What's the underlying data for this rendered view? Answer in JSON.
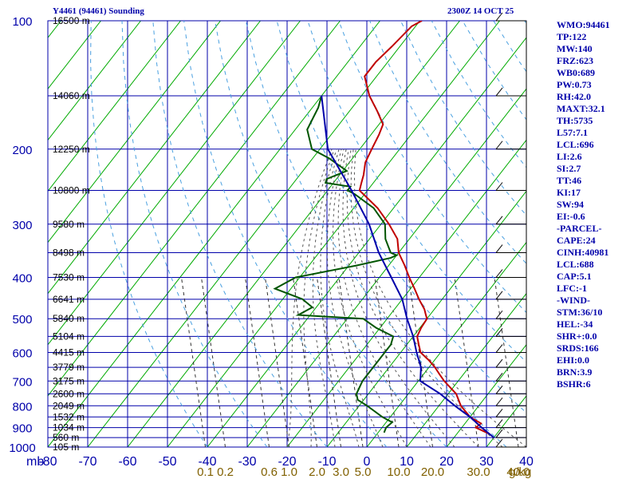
{
  "title": "Y4461 (94461) Sounding",
  "valid_time": "2300Z 14 OCT 25",
  "indices": [
    "WMO:94461",
    "TP:122",
    "MW:140",
    "FRZ:623",
    "WB0:689",
    "PW:0.73",
    "RH:42.0",
    "MAXT:32.1",
    "TH:5735",
    "L57:7.1",
    "LCL:696",
    "LI:2.6",
    "SI:2.7",
    "TT:46",
    "KI:17",
    "SW:94",
    "EI:-0.6",
    "-PARCEL-",
    "CAPE:24",
    "CINH:40981",
    "LCL:688",
    "CAP:5.1",
    "LFC:-1",
    "-WIND-",
    "STM:36/10",
    "HEL:-34",
    "SHR+:0.0",
    "SRDS:166",
    "EHI:0.0",
    "BRN:3.9",
    "BSHR:6"
  ],
  "chart_data": {
    "type": "line",
    "title": "Y4461 (94461) Sounding",
    "subtitle": "2300Z 14 OCT 25",
    "xlabel": "Temperature (C)",
    "ylabel": "mb",
    "xlim": [
      -80,
      40
    ],
    "ylim": [
      1000,
      100
    ],
    "x_ticks": [
      -80,
      -70,
      -60,
      -50,
      -40,
      -30,
      -20,
      -10,
      0,
      10,
      20,
      30,
      40
    ],
    "x_tick_labels": [
      "-80",
      "-70",
      "-60",
      "-50",
      "-40",
      "-30",
      "-20",
      "-10",
      "0",
      "10",
      "20",
      "30",
      "40"
    ],
    "x_axis_unit": "mb",
    "pressure_levels": [
      100,
      200,
      300,
      400,
      500,
      600,
      700,
      800,
      900,
      1000
    ],
    "pressure_labels": [
      "100",
      "200",
      "300",
      "400",
      "500",
      "600",
      "700",
      "800",
      "900",
      "1000"
    ],
    "height_labels": [
      {
        "p": 100,
        "text": "16500 m"
      },
      {
        "p": 150,
        "text": "14060 m"
      },
      {
        "p": 200,
        "text": "12250 m"
      },
      {
        "p": 250,
        "text": "10800 m"
      },
      {
        "p": 300,
        "text": "9580 m"
      },
      {
        "p": 350,
        "text": "8498 m"
      },
      {
        "p": 400,
        "text": "7530 m"
      },
      {
        "p": 450,
        "text": "6641 m"
      },
      {
        "p": 500,
        "text": "5840 m"
      },
      {
        "p": 550,
        "text": "5104 m"
      },
      {
        "p": 600,
        "text": "4415 m"
      },
      {
        "p": 650,
        "text": "3779 m"
      },
      {
        "p": 700,
        "text": "3175 m"
      },
      {
        "p": 750,
        "text": "2600 m"
      },
      {
        "p": 800,
        "text": "2049 m"
      },
      {
        "p": 850,
        "text": "1532 m"
      },
      {
        "p": 900,
        "text": "1034 m"
      },
      {
        "p": 950,
        "text": "560 m"
      },
      {
        "p": 1000,
        "text": "105 m"
      }
    ],
    "mixing_ratio_labels": [
      {
        "x": -40.5,
        "text": "0.1"
      },
      {
        "x": -35.5,
        "text": "0.2"
      },
      {
        "x": -24.5,
        "text": "0.6"
      },
      {
        "x": -19.5,
        "text": "1.0"
      },
      {
        "x": -12.5,
        "text": "2.0"
      },
      {
        "x": -6.5,
        "text": "3.0"
      },
      {
        "x": -1,
        "text": "5.0"
      },
      {
        "x": 8,
        "text": "10.0"
      },
      {
        "x": 16.5,
        "text": "20.0"
      },
      {
        "x": 28,
        "text": "30.0"
      },
      {
        "x": 38,
        "text": "40.0"
      }
    ],
    "mixing_ratio_unit": "g/kg",
    "series": [
      {
        "name": "Temperature",
        "color": "#c00000",
        "points": [
          [
            100,
            -69.5
          ],
          [
            103,
            -71
          ],
          [
            115,
            -72
          ],
          [
            125,
            -73
          ],
          [
            135,
            -73
          ],
          [
            150,
            -68
          ],
          [
            163,
            -63
          ],
          [
            175,
            -59
          ],
          [
            185,
            -58
          ],
          [
            200,
            -57
          ],
          [
            215,
            -56
          ],
          [
            230,
            -54
          ],
          [
            240,
            -53
          ],
          [
            250,
            -52
          ],
          [
            275,
            -44
          ],
          [
            300,
            -38
          ],
          [
            325,
            -33
          ],
          [
            350,
            -30
          ],
          [
            375,
            -26
          ],
          [
            400,
            -22.5
          ],
          [
            425,
            -19
          ],
          [
            450,
            -15.8
          ],
          [
            475,
            -12.5
          ],
          [
            490,
            -11
          ],
          [
            500,
            -10
          ],
          [
            525,
            -9.7
          ],
          [
            550,
            -9
          ],
          [
            575,
            -7
          ],
          [
            600,
            -5
          ],
          [
            625,
            -1.5
          ],
          [
            650,
            1.5
          ],
          [
            675,
            4
          ],
          [
            700,
            6.5
          ],
          [
            750,
            12
          ],
          [
            800,
            15.5
          ],
          [
            850,
            20
          ],
          [
            880,
            24
          ],
          [
            900,
            23.5
          ],
          [
            930,
            28
          ]
        ]
      },
      {
        "name": "Dewpoint",
        "color": "#005500",
        "points": [
          [
            150,
            -80
          ],
          [
            160,
            -78.5
          ],
          [
            180,
            -77
          ],
          [
            200,
            -72
          ],
          [
            210,
            -66
          ],
          [
            225,
            -59
          ],
          [
            235,
            -62.5
          ],
          [
            240,
            -62
          ],
          [
            245,
            -55
          ],
          [
            250,
            -55
          ],
          [
            255,
            -52.5
          ],
          [
            275,
            -45
          ],
          [
            300,
            -39
          ],
          [
            325,
            -36
          ],
          [
            350,
            -32
          ],
          [
            355,
            -30
          ],
          [
            360,
            -31
          ],
          [
            375,
            -38
          ],
          [
            400,
            -51
          ],
          [
            425,
            -54
          ],
          [
            450,
            -45
          ],
          [
            470,
            -41
          ],
          [
            490,
            -43
          ],
          [
            500,
            -26
          ],
          [
            525,
            -21
          ],
          [
            550,
            -15
          ],
          [
            575,
            -14
          ],
          [
            600,
            -14
          ],
          [
            650,
            -14
          ],
          [
            700,
            -14
          ],
          [
            750,
            -13
          ],
          [
            775,
            -11.5
          ],
          [
            800,
            -8
          ],
          [
            850,
            -2
          ],
          [
            875,
            1.5
          ],
          [
            900,
            1
          ],
          [
            925,
            1.5
          ]
        ]
      },
      {
        "name": "Parcel",
        "color": "#0000aa",
        "points": [
          [
            150,
            -80
          ],
          [
            200,
            -68
          ],
          [
            250,
            -54
          ],
          [
            300,
            -43
          ],
          [
            350,
            -35
          ],
          [
            400,
            -27
          ],
          [
            450,
            -20
          ],
          [
            500,
            -15
          ],
          [
            550,
            -10
          ],
          [
            600,
            -6
          ],
          [
            650,
            -2
          ],
          [
            700,
            0.5
          ],
          [
            750,
            8
          ],
          [
            800,
            14
          ],
          [
            850,
            20
          ],
          [
            900,
            25
          ],
          [
            950,
            30
          ]
        ]
      }
    ]
  }
}
